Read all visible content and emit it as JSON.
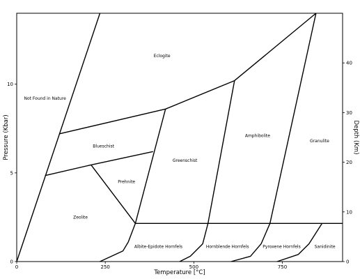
{
  "chart_data": {
    "type": "diagram",
    "title": "",
    "xlabel": "Temperature [°C]",
    "ylabel_left": "Pressure (Kbar)",
    "ylabel_right": "Depth (Km)",
    "xlim": [
      0,
      920
    ],
    "ylim_left": [
      0,
      14
    ],
    "ylim_right": [
      0,
      50
    ],
    "x_ticks": [
      {
        "value": 0,
        "label": "0"
      },
      {
        "value": 250,
        "label": "250"
      },
      {
        "value": 500,
        "label": "500"
      },
      {
        "value": 750,
        "label": "750"
      }
    ],
    "y_ticks_left": [
      {
        "value": 0,
        "label": "0"
      },
      {
        "value": 5,
        "label": "5"
      },
      {
        "value": 10,
        "label": "10"
      }
    ],
    "y_ticks_right": [
      {
        "value": 0,
        "label": "0"
      },
      {
        "value": 10,
        "label": "10"
      },
      {
        "value": 20,
        "label": "20"
      },
      {
        "value": 30,
        "label": "30"
      },
      {
        "value": 40,
        "label": "40"
      }
    ],
    "facies_labels": [
      {
        "name": "Eclogite",
        "t": 410,
        "p": 11.6
      },
      {
        "name": "Not Found in Nature",
        "t": 80,
        "p": 9.2
      },
      {
        "name": "Blueschist",
        "t": 245,
        "p": 6.5
      },
      {
        "name": "Greenschist",
        "t": 475,
        "p": 5.7
      },
      {
        "name": "Amphibolite",
        "t": 680,
        "p": 7.1
      },
      {
        "name": "Granulite",
        "t": 855,
        "p": 6.8
      },
      {
        "name": "Prehnite",
        "t": 310,
        "p": 4.5
      },
      {
        "name": "Zeolite",
        "t": 180,
        "p": 2.5
      },
      {
        "name": "Albite-Epidote Hornfels",
        "t": 400,
        "p": 0.85
      },
      {
        "name": "Hornblende Hornfels",
        "t": 595,
        "p": 0.85
      },
      {
        "name": "Pyroxene Hornfels",
        "t": 748,
        "p": 0.85
      },
      {
        "name": "Sanidinite",
        "t": 870,
        "p": 0.85
      }
    ],
    "boundaries": [
      {
        "name": "boundary-zero-pressure-line",
        "points": [
          [
            0,
            0
          ],
          [
            235,
            14
          ]
        ]
      },
      {
        "name": "boundary-blueschist-top",
        "points": [
          [
            120,
            7.2
          ],
          [
            420,
            8.6
          ],
          [
            615,
            10.2
          ],
          [
            845,
            14
          ]
        ]
      },
      {
        "name": "boundary-blueschist-bottom",
        "points": [
          [
            80,
            4.85
          ],
          [
            210,
            5.45
          ],
          [
            385,
            6.2
          ]
        ]
      },
      {
        "name": "boundary-greenschist-left",
        "points": [
          [
            420,
            8.6
          ],
          [
            335,
            2.15
          ]
        ]
      },
      {
        "name": "boundary-prehnite-zeolite",
        "points": [
          [
            210,
            5.45
          ],
          [
            335,
            2.15
          ]
        ]
      },
      {
        "name": "boundary-amphibolite-left",
        "points": [
          [
            615,
            10.2
          ],
          [
            540,
            2.15
          ]
        ]
      },
      {
        "name": "boundary-granulite-left",
        "points": [
          [
            845,
            14
          ],
          [
            715,
            2.15
          ]
        ]
      },
      {
        "name": "boundary-hornfels-top",
        "points": [
          [
            335,
            2.15
          ],
          [
            920,
            2.15
          ]
        ]
      },
      {
        "name": "boundary-hornfels-1",
        "points": [
          [
            335,
            2.15
          ],
          [
            315,
            1.1
          ],
          [
            300,
            0.6
          ],
          [
            235,
            0
          ]
        ]
      },
      {
        "name": "boundary-hornfels-2",
        "points": [
          [
            540,
            2.15
          ],
          [
            525,
            1.0
          ],
          [
            490,
            0.3
          ],
          [
            460,
            0
          ]
        ]
      },
      {
        "name": "boundary-hornfels-3",
        "points": [
          [
            715,
            2.15
          ],
          [
            690,
            1.0
          ],
          [
            660,
            0.3
          ],
          [
            605,
            0
          ]
        ]
      },
      {
        "name": "boundary-hornfels-4",
        "points": [
          [
            862,
            2.15
          ],
          [
            825,
            1.0
          ],
          [
            795,
            0.4
          ],
          [
            735,
            0
          ]
        ]
      }
    ]
  }
}
